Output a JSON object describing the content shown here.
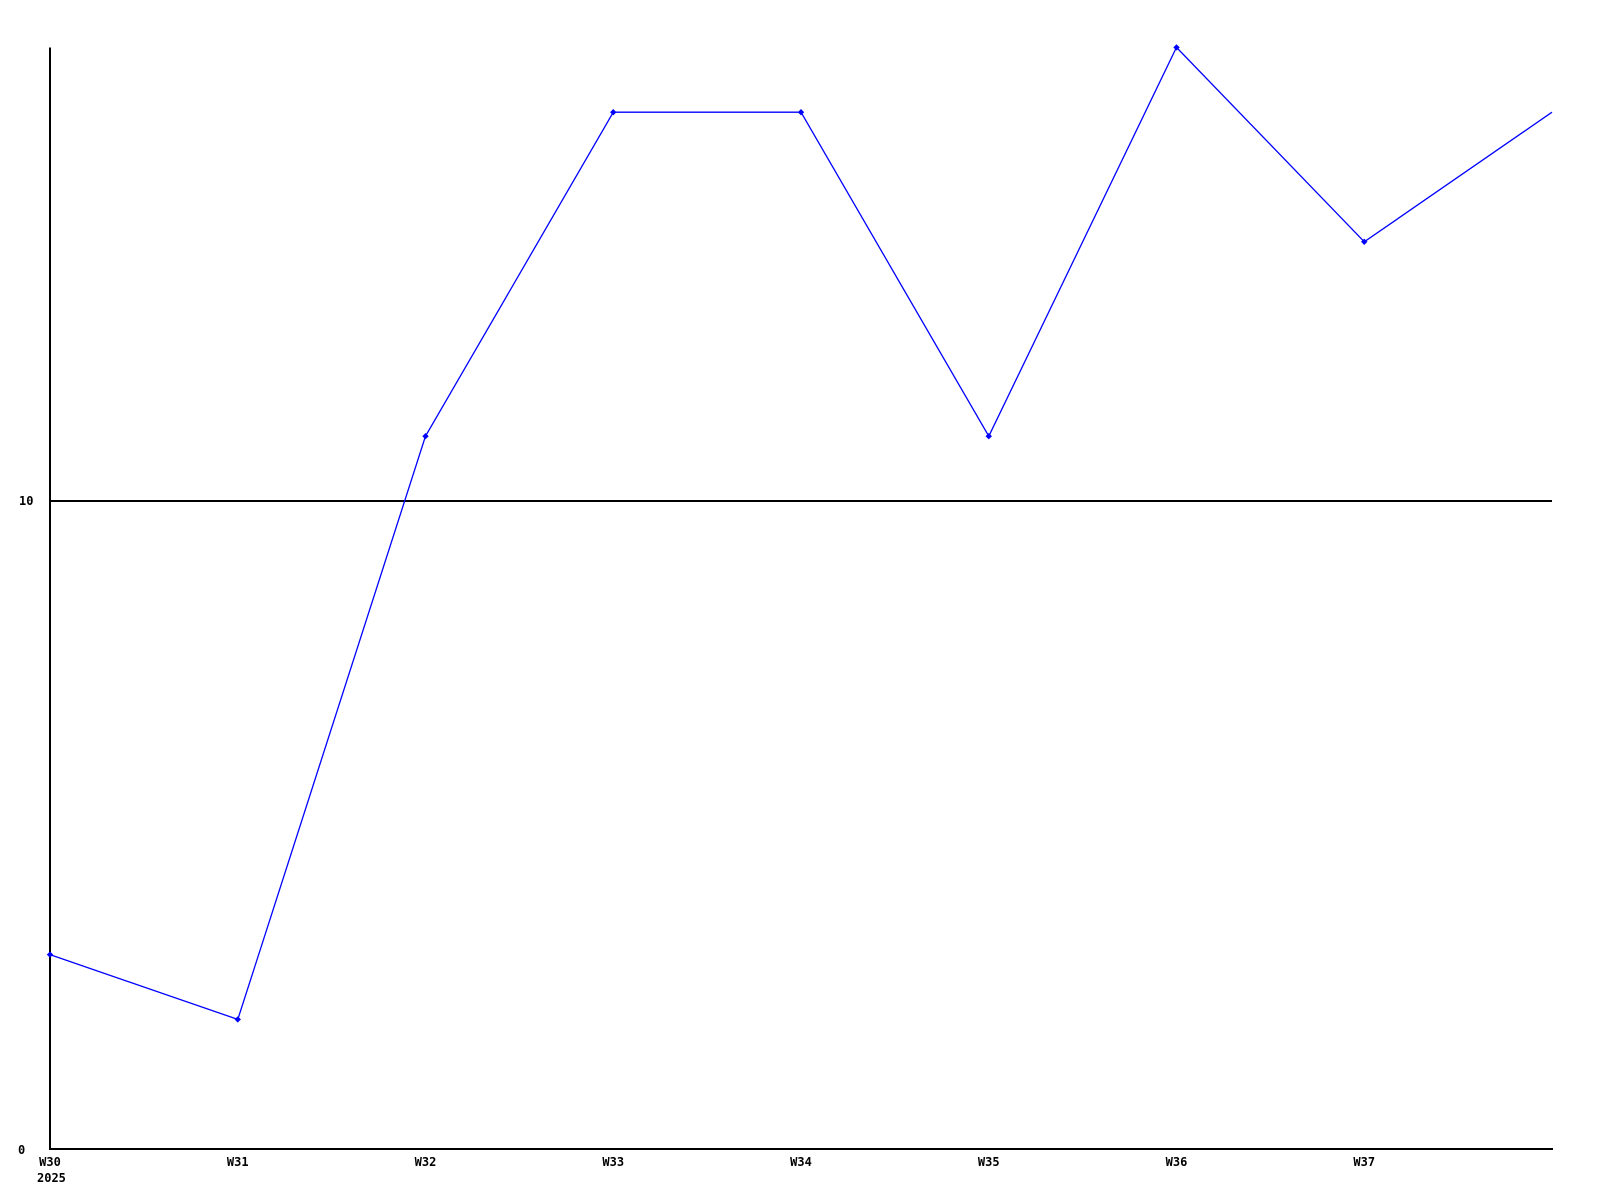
{
  "page": {
    "background": "#ffffff"
  },
  "chart_data": {
    "type": "line",
    "title": "",
    "xlabel": "",
    "ylabel": "",
    "categories": [
      "W30",
      "W31",
      "W32",
      "W33",
      "W34",
      "W35",
      "W36",
      "W37"
    ],
    "values": [
      3,
      2,
      11,
      16,
      16,
      11,
      17,
      14
    ],
    "edge_continuation_value": 16,
    "x_sub_label": "2025",
    "y_ticks": [
      {
        "value": 0,
        "label": "0"
      },
      {
        "value": 10,
        "label": "10"
      }
    ],
    "ylim": [
      0,
      17
    ],
    "grid": "single-horizontal-line-at-10",
    "legend_position": "none",
    "line_color": "#0000ff",
    "marker": "diamond",
    "axis_color": "#000000",
    "text_color": "#000000"
  }
}
